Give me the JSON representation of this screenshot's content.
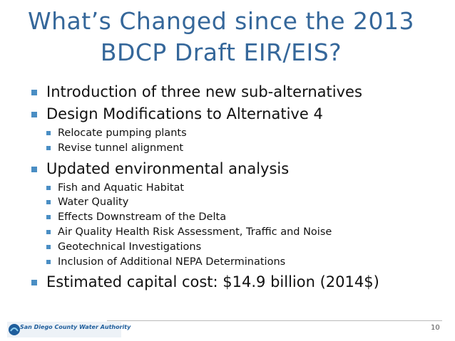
{
  "title_lines": [
    "What’s Changed since the 2013",
    "BDCP Draft EIR/EIS?"
  ],
  "bullets": [
    {
      "text": "Introduction of three new sub-alternatives",
      "items": []
    },
    {
      "text": "Design Modifications to Alternative 4",
      "items": [
        "Relocate pumping plants",
        "Revise tunnel alignment"
      ]
    },
    {
      "text": "Updated environmental analysis",
      "items": [
        "Fish and Aquatic Habitat",
        "Water Quality",
        "Effects Downstream of the Delta",
        "Air Quality Health Risk Assessment, Traffic and Noise",
        "Geotechnical Investigations",
        "Inclusion of Additional NEPA Determinations"
      ]
    },
    {
      "text": "Estimated capital cost: $14.9 billion (2014$)",
      "items": []
    }
  ],
  "footer": {
    "logo_text": "San Diego County Water Authority",
    "page_number": "10"
  }
}
